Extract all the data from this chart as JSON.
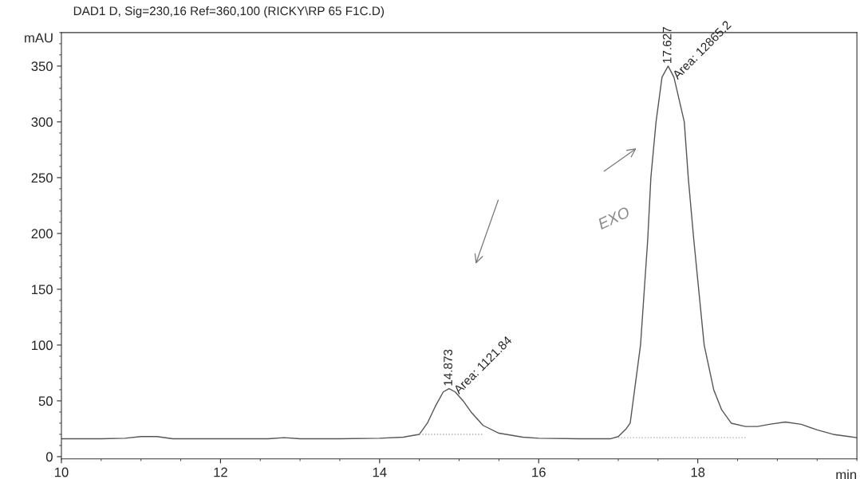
{
  "chart_data": {
    "type": "line",
    "title": "DAD1 D, Sig=230,16 Ref=360,100 (RICKY\\RP 65 F1C.D)",
    "xlabel": "min",
    "ylabel": "mAU",
    "xlim": [
      10,
      20
    ],
    "xticks": [
      10,
      12,
      14,
      16,
      18
    ],
    "ylim": [
      -2,
      380
    ],
    "yticks": [
      0,
      50,
      100,
      150,
      200,
      250,
      300,
      350
    ],
    "grid": false,
    "series": [
      {
        "color": "#555555",
        "line_style": "solid",
        "x": [
          10,
          10.5,
          10.8,
          11.0,
          11.2,
          11.4,
          12,
          12.6,
          12.8,
          13.0,
          13.5,
          14.0,
          14.3,
          14.5,
          14.6,
          14.7,
          14.8,
          14.873,
          14.95,
          15.05,
          15.15,
          15.3,
          15.5,
          15.8,
          16.0,
          16.5,
          16.9,
          17.0,
          17.1,
          17.15,
          17.28,
          17.37,
          17.41,
          17.475,
          17.55,
          17.627,
          17.7,
          17.83,
          17.88,
          17.95,
          18.08,
          18.2,
          18.3,
          18.42,
          18.6,
          18.75,
          18.9,
          19.1,
          19.3,
          19.5,
          19.7,
          19.9,
          20.0
        ],
        "values": [
          16,
          16,
          16.5,
          18,
          18,
          16,
          16,
          16,
          17,
          16,
          16,
          16.5,
          17.5,
          20,
          30,
          45,
          58,
          61,
          58,
          50,
          40,
          28,
          21,
          17.5,
          16.5,
          16,
          16,
          18,
          25,
          30,
          100,
          194,
          250,
          300,
          340,
          350,
          340,
          300,
          250,
          194,
          100,
          60,
          42,
          30,
          27,
          27,
          29,
          31,
          29,
          24,
          20,
          18,
          17
        ]
      },
      {
        "color": "#aaaaaa",
        "line_style": "dotted",
        "x": [
          14.5,
          15.3
        ],
        "values": [
          20,
          20
        ]
      },
      {
        "color": "#aaaaaa",
        "line_style": "dotted",
        "x": [
          17.0,
          18.6
        ],
        "values": [
          17,
          17
        ]
      }
    ],
    "annotations": [
      {
        "text": "14.873",
        "x": 14.873,
        "y": 61
      },
      {
        "text": "Area: 1121.84",
        "x": 14.95,
        "y": 58
      },
      {
        "text": "17.627",
        "x": 17.627,
        "y": 350
      },
      {
        "text": "Area: 12865.2",
        "x": 17.7,
        "y": 340
      },
      "EXO"
    ]
  }
}
